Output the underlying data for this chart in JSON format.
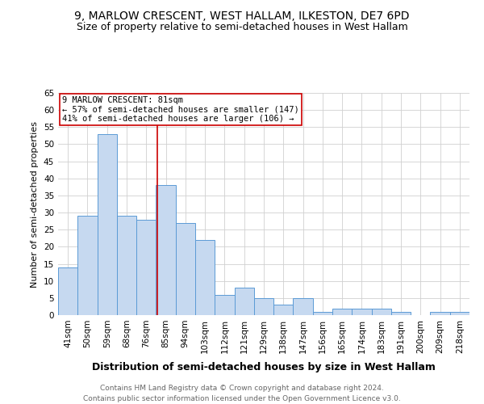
{
  "title": "9, MARLOW CRESCENT, WEST HALLAM, ILKESTON, DE7 6PD",
  "subtitle": "Size of property relative to semi-detached houses in West Hallam",
  "xlabel": "Distribution of semi-detached houses by size in West Hallam",
  "ylabel": "Number of semi-detached properties",
  "footnote": "Contains HM Land Registry data © Crown copyright and database right 2024.\nContains public sector information licensed under the Open Government Licence v3.0.",
  "categories": [
    "41sqm",
    "50sqm",
    "59sqm",
    "68sqm",
    "76sqm",
    "85sqm",
    "94sqm",
    "103sqm",
    "112sqm",
    "121sqm",
    "129sqm",
    "138sqm",
    "147sqm",
    "156sqm",
    "165sqm",
    "174sqm",
    "183sqm",
    "191sqm",
    "200sqm",
    "209sqm",
    "218sqm"
  ],
  "values": [
    14,
    29,
    53,
    29,
    28,
    38,
    27,
    22,
    6,
    8,
    5,
    3,
    5,
    1,
    2,
    2,
    2,
    1,
    0,
    1,
    1
  ],
  "bar_color": "#c6d9f0",
  "bar_edge_color": "#5b9bd5",
  "vline_color": "#cc0000",
  "vline_x": 4.56,
  "annotation_text": "9 MARLOW CRESCENT: 81sqm\n← 57% of semi-detached houses are smaller (147)\n41% of semi-detached houses are larger (106) →",
  "annotation_box_facecolor": "#ffffff",
  "annotation_box_edgecolor": "#cc0000",
  "ylim": [
    0,
    65
  ],
  "yticks": [
    0,
    5,
    10,
    15,
    20,
    25,
    30,
    35,
    40,
    45,
    50,
    55,
    60,
    65
  ],
  "bg_color": "#ffffff",
  "grid_color": "#d0d0d0",
  "title_fontsize": 10,
  "subtitle_fontsize": 9,
  "xlabel_fontsize": 9,
  "ylabel_fontsize": 8,
  "tick_fontsize": 7.5,
  "annotation_fontsize": 7.5,
  "footnote_fontsize": 6.5
}
